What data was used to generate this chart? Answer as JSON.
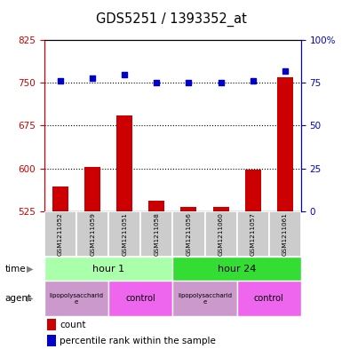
{
  "title": "GDS5251 / 1393352_at",
  "samples": [
    "GSM1211052",
    "GSM1211059",
    "GSM1211051",
    "GSM1211058",
    "GSM1211056",
    "GSM1211060",
    "GSM1211057",
    "GSM1211061"
  ],
  "count_values": [
    568,
    603,
    693,
    543,
    532,
    533,
    598,
    760
  ],
  "percentile_values": [
    76,
    78,
    80,
    75,
    75,
    75,
    76,
    82
  ],
  "ylim_left": [
    525,
    825
  ],
  "ylim_right": [
    0,
    100
  ],
  "yticks_left": [
    525,
    600,
    675,
    750,
    825
  ],
  "ytick_labels_left": [
    "525",
    "600",
    "675",
    "750",
    "825"
  ],
  "yticks_right": [
    0,
    25,
    50,
    75,
    100
  ],
  "ytick_labels_right": [
    "0",
    "25",
    "50",
    "75",
    "100%"
  ],
  "grid_values": [
    600,
    675,
    750
  ],
  "bar_color": "#cc0000",
  "dot_color": "#0000cc",
  "bar_width": 0.5,
  "time_h1_color": "#aaffaa",
  "time_h24_color": "#33dd33",
  "agent_lps_color": "#cc99cc",
  "agent_ctrl_color": "#ee66ee",
  "sample_box_color": "#cccccc",
  "legend_count_color": "#cc0000",
  "legend_dot_color": "#0000cc",
  "tick_color_left": "#cc0000",
  "tick_color_right": "#0000cc"
}
